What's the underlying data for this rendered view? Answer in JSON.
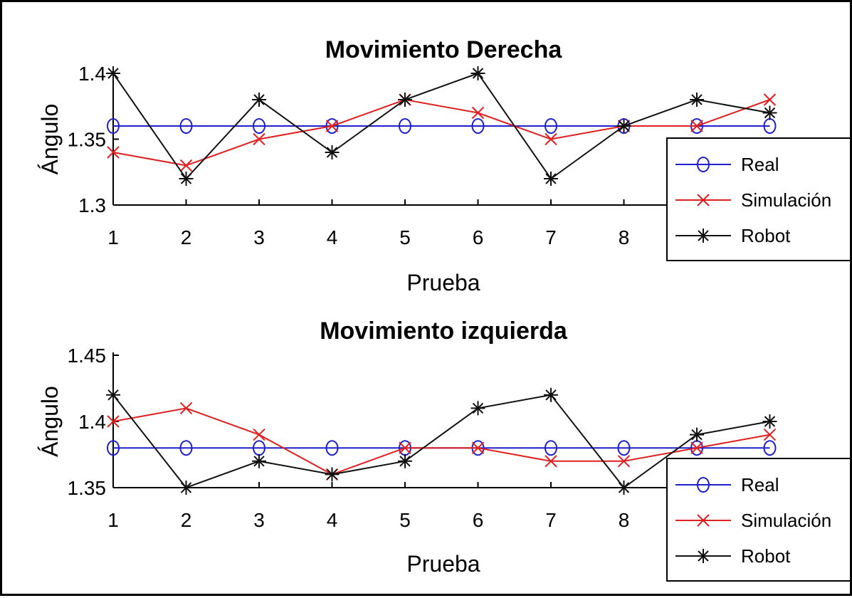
{
  "colors": {
    "real": "#1f1fcc",
    "simulacion": "#e02020",
    "robot": "#111111"
  },
  "chart_data": [
    {
      "type": "line",
      "title": "Movimiento Derecha",
      "xlabel": "Prueba",
      "ylabel": "Ángulo",
      "x": [
        1,
        2,
        3,
        4,
        5,
        6,
        7,
        8,
        9,
        10
      ],
      "xticks": [
        1,
        2,
        3,
        4,
        5,
        6,
        7,
        8
      ],
      "yticks": [
        "1.3",
        "1.35",
        "1.4"
      ],
      "ylim": [
        1.3,
        1.4
      ],
      "grid": false,
      "legend": "right",
      "series": [
        {
          "name": "Real",
          "marker": "o",
          "values": [
            1.36,
            1.36,
            1.36,
            1.36,
            1.36,
            1.36,
            1.36,
            1.36,
            1.36,
            1.36
          ]
        },
        {
          "name": "Simulación",
          "marker": "x",
          "values": [
            1.34,
            1.33,
            1.35,
            1.36,
            1.38,
            1.37,
            1.35,
            1.36,
            1.36,
            1.38
          ]
        },
        {
          "name": "Robot",
          "marker": "*",
          "values": [
            1.4,
            1.32,
            1.38,
            1.34,
            1.38,
            1.4,
            1.32,
            1.36,
            1.38,
            1.37
          ]
        }
      ]
    },
    {
      "type": "line",
      "title": "Movimiento izquierda",
      "xlabel": "Prueba",
      "ylabel": "Ángulo",
      "x": [
        1,
        2,
        3,
        4,
        5,
        6,
        7,
        8,
        9,
        10
      ],
      "xticks": [
        1,
        2,
        3,
        4,
        5,
        6,
        7,
        8
      ],
      "yticks": [
        "1.35",
        "1.4",
        "1.45"
      ],
      "ylim": [
        1.35,
        1.45
      ],
      "grid": false,
      "legend": "right",
      "series": [
        {
          "name": "Real",
          "marker": "o",
          "values": [
            1.38,
            1.38,
            1.38,
            1.38,
            1.38,
            1.38,
            1.38,
            1.38,
            1.38,
            1.38
          ]
        },
        {
          "name": "Simulación",
          "marker": "x",
          "values": [
            1.4,
            1.41,
            1.39,
            1.36,
            1.38,
            1.38,
            1.37,
            1.37,
            1.38,
            1.39
          ]
        },
        {
          "name": "Robot",
          "marker": "*",
          "values": [
            1.42,
            1.35,
            1.37,
            1.36,
            1.37,
            1.41,
            1.42,
            1.35,
            1.39,
            1.4
          ]
        }
      ]
    }
  ]
}
